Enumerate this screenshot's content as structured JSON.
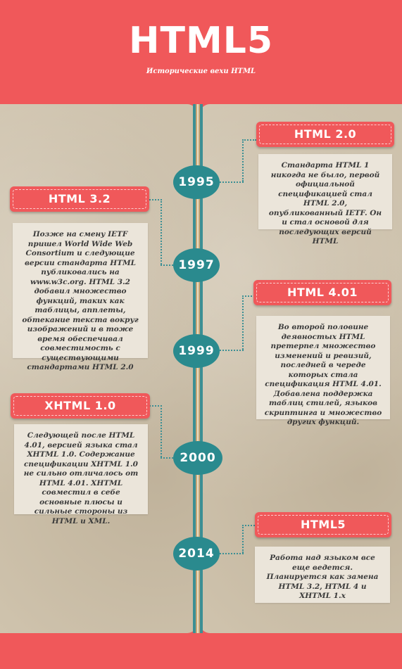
{
  "header": {
    "title": "HTML5",
    "subtitle": "Исторические вехи HTML"
  },
  "colors": {
    "brand_red": "#f0585a",
    "teal": "#2a8a8e",
    "card_bg": "#ebe5da",
    "paper": "#cfc3ad"
  },
  "milestones": [
    {
      "year": "1995",
      "title": "HTML 2.0",
      "text": "Стандарта HTML 1 никогда не было, первой официальной спецификацией стал HTML 2.0, опубликованный IETF.  Он и стал основой для последующих версий HTML"
    },
    {
      "year": "1997",
      "title": "HTML 3.2",
      "text": "Позже на смену IETF пришел World Wide Web Consortium и следующие версии стандарта HTML публиковались на www.w3c.org.  HTML 3.2 добавил множество функций, таких как таблицы, апплеты, обтекание текста вокруг изображений и в тоже время обеспечивал совместимость с существующими стандартами HTML 2.0"
    },
    {
      "year": "1999",
      "title": "HTML 4.01",
      "text": "Во второй половине деявностых HTML претерпел множество изменений и ревизий, последней в череде которых стала спецификация HTML 4.01. Добавлена поддержка таблиц стилей, языков скриптинга и множество других функций."
    },
    {
      "year": "2000",
      "title": "XHTML 1.0",
      "text": "Следующей после HTML 4.01, версией языка стал XHTML 1.0. Содержание спецификации XHTML 1.0 не сильно отличалось от HTML 4.01. XHTML совместил в себе основные плюсы и сильные стороны из HTML и XML."
    },
    {
      "year": "2014",
      "title": "HTML5",
      "text": "Работа над языком все еще ведется. Планируется как замена HTML 3.2, HTML 4 и XHTML 1.x"
    }
  ]
}
